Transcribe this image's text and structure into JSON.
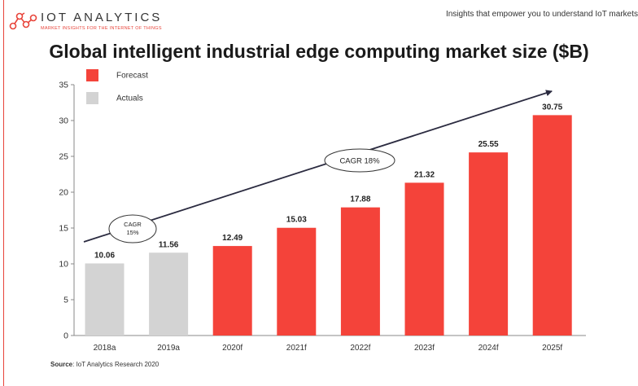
{
  "header": {
    "brand_name": "IOT ANALYTICS",
    "brand_tagline": "MARKET INSIGHTS FOR THE INTERNET OF THINGS",
    "tagline": "Insights that empower you to understand IoT markets",
    "logo_icon": "molecule-icon"
  },
  "colors": {
    "forecast": "#f4433a",
    "actuals": "#d3d3d3",
    "accent": "#e8443a",
    "arrow": "#2b2b40"
  },
  "chart_data": {
    "type": "bar",
    "title": "Global intelligent industrial edge computing market size ($B)",
    "categories": [
      "2018a",
      "2019a",
      "2020f",
      "2021f",
      "2022f",
      "2023f",
      "2024f",
      "2025f"
    ],
    "values": [
      10.06,
      11.56,
      12.49,
      15.03,
      17.88,
      21.32,
      25.55,
      30.75
    ],
    "value_labels": [
      "10.06",
      "11.56",
      "12.49",
      "15.03",
      "17.88",
      "21.32",
      "25.55",
      "30.75"
    ],
    "kinds": [
      "Actuals",
      "Actuals",
      "Forecast",
      "Forecast",
      "Forecast",
      "Forecast",
      "Forecast",
      "Forecast"
    ],
    "ylim": [
      0,
      35
    ],
    "yticks": [
      0,
      5,
      10,
      15,
      20,
      25,
      30,
      35
    ],
    "legend": {
      "placement": "top-left",
      "entries": [
        {
          "label": "Forecast",
          "kind": "Forecast"
        },
        {
          "label": "Actuals",
          "kind": "Actuals"
        }
      ]
    },
    "annotations": [
      {
        "text": "CAGR\n15%",
        "segment": [
          "2018a",
          "2019a"
        ]
      },
      {
        "text": "CAGR 18%",
        "segment": [
          "2019a",
          "2025f"
        ]
      }
    ],
    "grid": false
  },
  "source": {
    "label": "Source",
    "text": ": IoT Analytics Research 2020"
  }
}
